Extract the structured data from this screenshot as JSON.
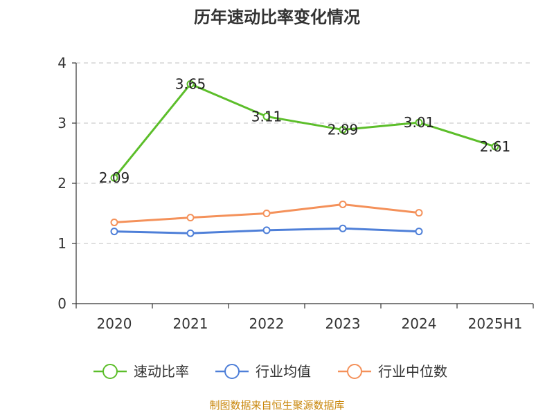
{
  "chart_data": {
    "type": "line",
    "title": "历年速动比率变化情况",
    "categories": [
      "2020",
      "2021",
      "2022",
      "2023",
      "2024",
      "2025H1"
    ],
    "ylim": [
      0,
      4
    ],
    "yticks": [
      "0",
      "1",
      "2",
      "3",
      "4"
    ],
    "grid": true,
    "legend_position": "bottom",
    "series": [
      {
        "name": "速动比率",
        "color": "#5cbe2a",
        "values": [
          2.09,
          3.65,
          3.11,
          2.89,
          3.01,
          2.61
        ],
        "labels": [
          "2.09",
          "3.65",
          "3.11",
          "2.89",
          "3.01",
          "2.61"
        ]
      },
      {
        "name": "行业均值",
        "color": "#4e7fd8",
        "values": [
          1.2,
          1.17,
          1.22,
          1.25,
          1.2,
          null
        ]
      },
      {
        "name": "行业中位数",
        "color": "#f4915a",
        "values": [
          1.35,
          1.43,
          1.5,
          1.65,
          1.51,
          null
        ]
      }
    ]
  },
  "footer": {
    "source": "制图数据来自恒生聚源数据库"
  }
}
